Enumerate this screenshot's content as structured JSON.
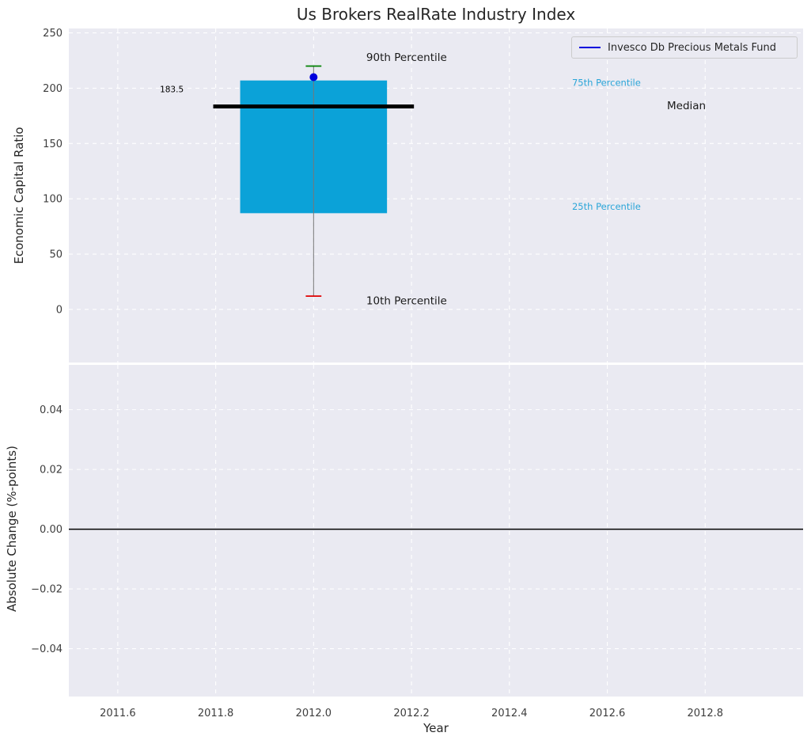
{
  "title": "Us Brokers RealRate Industry Index",
  "legend": {
    "label": "Invesco Db Precious Metals Fund",
    "line_color": "#0000dd"
  },
  "axes": {
    "x": {
      "label": "Year",
      "lim": [
        2011.5,
        2013.0
      ],
      "ticks": [
        {
          "v": 2011.6,
          "label": "2011.6"
        },
        {
          "v": 2011.8,
          "label": "2011.8"
        },
        {
          "v": 2012.0,
          "label": "2012.0"
        },
        {
          "v": 2012.2,
          "label": "2012.2"
        },
        {
          "v": 2012.4,
          "label": "2012.4"
        },
        {
          "v": 2012.6,
          "label": "2012.6"
        },
        {
          "v": 2012.8,
          "label": "2012.8"
        }
      ]
    },
    "top": {
      "ylabel": "Economic Capital Ratio",
      "ylim": [
        -48,
        254
      ],
      "yticks": [
        {
          "v": 0,
          "label": "0"
        },
        {
          "v": 50,
          "label": "50"
        },
        {
          "v": 100,
          "label": "100"
        },
        {
          "v": 150,
          "label": "150"
        },
        {
          "v": 200,
          "label": "200"
        },
        {
          "v": 250,
          "label": "250"
        }
      ]
    },
    "bottom": {
      "ylabel": "Absolute Change (%-points)",
      "ylim": [
        -0.056,
        0.055
      ],
      "zero_line_y": 0,
      "yticks": [
        {
          "v": -0.04,
          "label": "−0.04"
        },
        {
          "v": -0.02,
          "label": "−0.02"
        },
        {
          "v": 0,
          "label": "0.00"
        },
        {
          "v": 0.02,
          "label": "0.02"
        },
        {
          "v": 0.04,
          "label": "0.04"
        }
      ]
    }
  },
  "chart_data": {
    "type": "box",
    "title": "Us Brokers RealRate Industry Index",
    "series_label": "Invesco Db Precious Metals Fund",
    "xlabel": "Year",
    "ylabel_top": "Economic Capital Ratio",
    "ylabel_bottom": "Absolute Change (%-points)",
    "x": 2012.0,
    "box": {
      "p10": 12,
      "p25": 87,
      "median": 183.5,
      "p75": 207,
      "p90": 220,
      "fund_value": 210,
      "median_label": "183.5",
      "box_halfwidth": 0.15,
      "median_halfwidth": 0.205,
      "cap_halfwidth": 0.016
    },
    "colors": {
      "box_fill": "#0ba2d8",
      "median": "#000000",
      "p90_cap": "#008000",
      "p10_cap": "#e00000",
      "fund_dot": "#0000dd",
      "whisker": "#777777",
      "background": "#eaeaf2",
      "grid": "#ffffff",
      "percentile_text": "#2aa5d8",
      "zero_line": "#000000"
    },
    "annotations": [
      {
        "text": "90th Percentile",
        "x": 2012.19,
        "y": 228,
        "color": "#1a1a1a",
        "size": 13.5,
        "anchor": "middle"
      },
      {
        "text": "10th Percentile",
        "x": 2012.19,
        "y": 8,
        "color": "#1a1a1a",
        "size": 13.5,
        "anchor": "middle"
      },
      {
        "text": "75th Percentile",
        "x": 2012.528,
        "y": 205,
        "color": "#2aa5d8",
        "size": 11.5,
        "anchor": "start"
      },
      {
        "text": "25th Percentile",
        "x": 2012.528,
        "y": 93,
        "color": "#2aa5d8",
        "size": 11.5,
        "anchor": "start"
      },
      {
        "text": "Median",
        "x": 2012.722,
        "y": 184.5,
        "color": "#1a1a1a",
        "size": 13.5,
        "anchor": "start"
      },
      {
        "text": "183.5",
        "x": 2011.686,
        "y": 199,
        "color": "#000000",
        "size": 10.5,
        "anchor": "start"
      }
    ]
  }
}
